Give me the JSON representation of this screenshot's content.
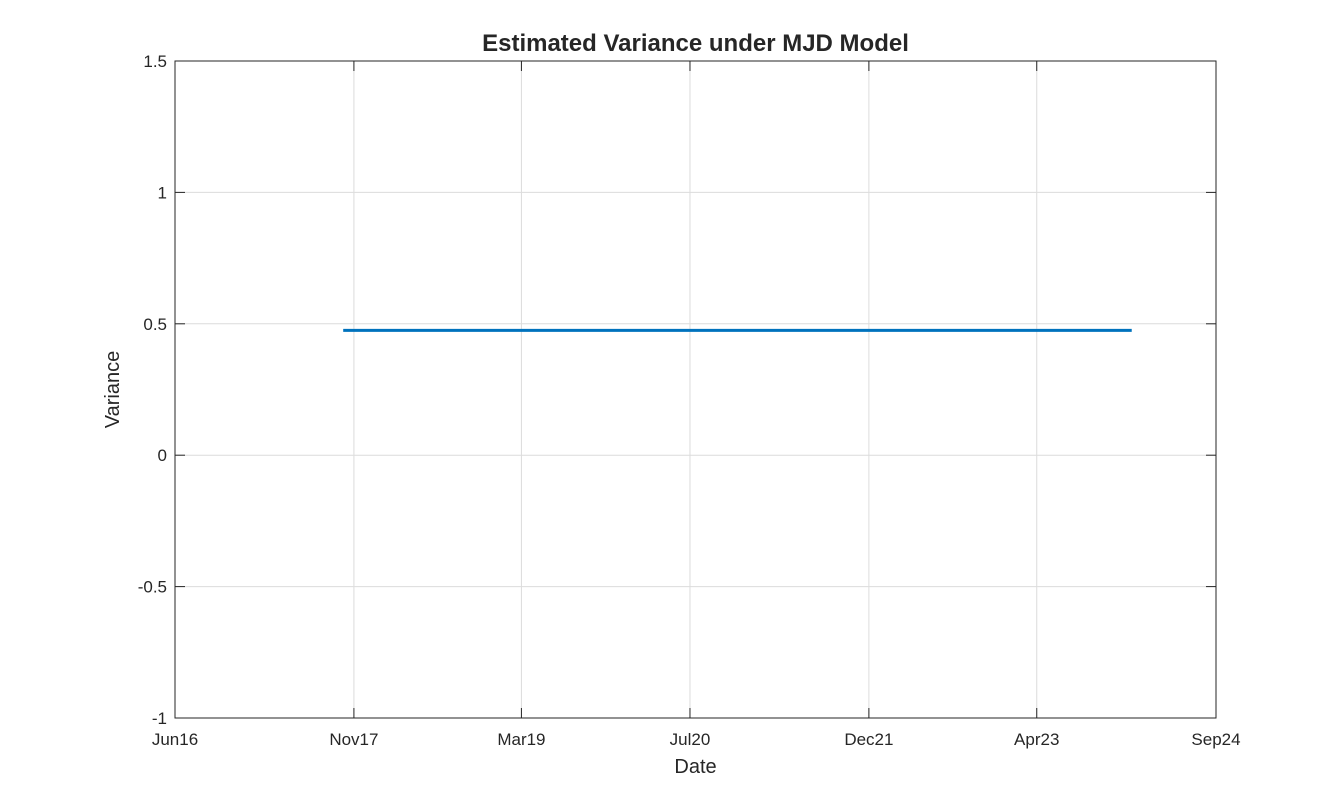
{
  "chart_data": {
    "type": "line",
    "title": "Estimated Variance under MJD Model",
    "xlabel": "Date",
    "ylabel": "Variance",
    "x_axis_type": "date",
    "xlim": [
      "2016-06-01",
      "2024-09-01"
    ],
    "ylim": [
      -1,
      1.5
    ],
    "x_ticks": [
      {
        "date": "2016-06-01",
        "label": "Jun16"
      },
      {
        "date": "2017-11-01",
        "label": "Nov17"
      },
      {
        "date": "2019-03-01",
        "label": "Mar19"
      },
      {
        "date": "2020-07-01",
        "label": "Jul20"
      },
      {
        "date": "2021-12-01",
        "label": "Dec21"
      },
      {
        "date": "2023-04-01",
        "label": "Apr23"
      },
      {
        "date": "2024-09-01",
        "label": "Sep24"
      }
    ],
    "y_ticks": [
      {
        "value": 1.5,
        "label": "1.5"
      },
      {
        "value": 1,
        "label": "1"
      },
      {
        "value": 0.5,
        "label": "0.5"
      },
      {
        "value": 0,
        "label": "0"
      },
      {
        "value": -0.5,
        "label": "-0.5"
      },
      {
        "value": -1,
        "label": "-1"
      }
    ],
    "grid": true,
    "legend": "none",
    "series": [
      {
        "color": "#0072BD",
        "x": [
          "2017-10-01",
          "2024-01-01"
        ],
        "y": [
          0.475,
          0.475
        ]
      }
    ]
  }
}
